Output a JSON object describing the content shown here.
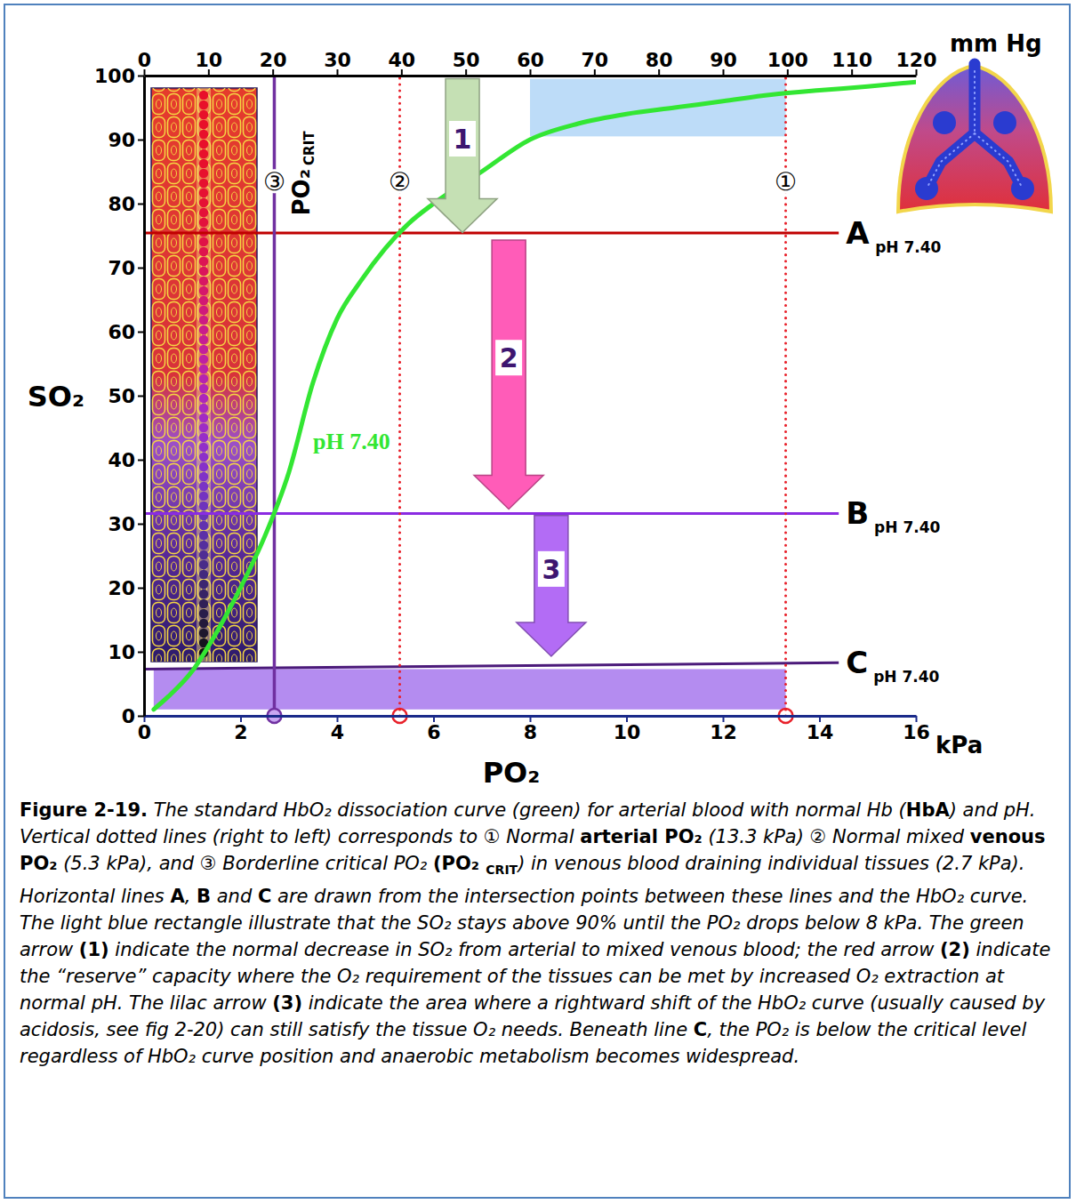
{
  "chart_data": {
    "type": "line",
    "xlabel": "PO₂",
    "xunit": "kPa",
    "x2unit": "mm Hg",
    "ylabel": "SO₂",
    "x": [
      0.2,
      0.5,
      1,
      1.5,
      2,
      2.5,
      3,
      3.5,
      4,
      4.5,
      5,
      5.5,
      6,
      7,
      8,
      9,
      10,
      11,
      12,
      13,
      14,
      15,
      16
    ],
    "series": [
      {
        "name": "pH 7.40",
        "color": "#33e633",
        "values": [
          1,
          3,
          7,
          13,
          20,
          28,
          38,
          52,
          62,
          68,
          73,
          77,
          80,
          85,
          90,
          92.5,
          94,
          95,
          96,
          97,
          97.7,
          98.3,
          99
        ]
      }
    ],
    "xlim": [
      0,
      16
    ],
    "xticks": [
      0,
      2,
      4,
      6,
      8,
      10,
      12,
      14,
      16
    ],
    "x2lim": [
      0,
      120
    ],
    "x2ticks": [
      0,
      10,
      20,
      30,
      40,
      50,
      60,
      70,
      80,
      90,
      100,
      110,
      120
    ],
    "ylim": [
      0,
      100
    ],
    "yticks": [
      0,
      10,
      20,
      30,
      40,
      50,
      60,
      70,
      80,
      90,
      100
    ],
    "grid": false,
    "regions": [
      {
        "x": [
          8,
          13.3
        ],
        "y": [
          90.5,
          99.5
        ],
        "color": "#bddcf8"
      },
      {
        "x": [
          0.2,
          13.3
        ],
        "y": [
          1,
          7.3
        ],
        "color": "#b48cf0"
      }
    ],
    "vlines": [
      {
        "label": "①",
        "x": 13.3,
        "color": "#e8202a",
        "line_style": "dotted"
      },
      {
        "label": "②",
        "x": 5.3,
        "color": "#e8202a",
        "line_style": "dotted"
      },
      {
        "label": "③",
        "x": 2.7,
        "color": "#7030a0",
        "line_style": "solid",
        "title": "PO₂",
        "title_sub": "CRIT"
      }
    ],
    "hlines": [
      {
        "label": "A",
        "sub": "pH 7.40",
        "x": [
          0,
          14.4
        ],
        "y": [
          75.4,
          75.4
        ],
        "color": "#c00000"
      },
      {
        "label": "B",
        "sub": "pH 7.40",
        "x": [
          0,
          14.4
        ],
        "y": [
          31.6,
          31.6
        ],
        "color": "#8a2be2"
      },
      {
        "label": "C",
        "sub": "pH 7.40",
        "x": [
          0,
          14.4
        ],
        "y": [
          7.3,
          8.3
        ],
        "color": "#4b1a7a"
      }
    ],
    "arrows": [
      {
        "label": "1",
        "x": 6.6,
        "from": 99.5,
        "to": 75.5,
        "color": "#c5e0b4"
      },
      {
        "label": "2",
        "x": 7.56,
        "from": 74.3,
        "to": 32.3,
        "color": "#ff5cb8"
      },
      {
        "label": "3",
        "x": 8.44,
        "from": 31.3,
        "to": 9.3,
        "color": "#b36cf5"
      }
    ]
  },
  "caption": {
    "runs": [
      {
        "text": "Figure 2-19.",
        "style": "bold"
      },
      {
        "text": " The standard HbO₂ dissociation curve (green) for arterial blood with normal Hb (",
        "style": "italic"
      },
      {
        "text": "HbA",
        "style": "bold"
      },
      {
        "text": ") and pH. Vertical dotted lines (right to left) corresponds to ① Normal ",
        "style": "italic"
      },
      {
        "text": "arterial PO₂",
        "style": "bold"
      },
      {
        "text": " (13.3 kPa) ② Normal mixed ",
        "style": "italic"
      },
      {
        "text": "venous PO₂",
        "style": "bold"
      },
      {
        "text": " (5.3 kPa), and ③ Borderline critical PO₂ ",
        "style": "italic"
      },
      {
        "text": "(PO₂ ",
        "style": "bold"
      },
      {
        "text": "CRIT",
        "style": "bold-sub"
      },
      {
        "text": ") in venous blood draining individual tissues (2.7 kPa). Horizontal lines ",
        "style": "italic"
      },
      {
        "text": "A",
        "style": "bold"
      },
      {
        "text": ", ",
        "style": "italic"
      },
      {
        "text": "B",
        "style": "bold"
      },
      {
        "text": " and ",
        "style": "italic"
      },
      {
        "text": "C",
        "style": "bold"
      },
      {
        "text": " are drawn from the intersection points between these lines and the HbO₂ curve. The light blue rectangle illustrate that the SO₂ stays above 90% until the PO₂ drops below 8 kPa. The green arrow ",
        "style": "italic"
      },
      {
        "text": "(1)",
        "style": "bold"
      },
      {
        "text": " indicate the normal decrease in SO₂ from arterial to mixed venous blood; the red arrow ",
        "style": "italic"
      },
      {
        "text": "(2)",
        "style": "bold"
      },
      {
        "text": " indicate the “reserve” capacity where the O₂ requirement of the tissues can be met by increased O₂ extraction at normal pH. The lilac arrow ",
        "style": "italic"
      },
      {
        "text": "(3)",
        "style": "bold"
      },
      {
        "text": " indicate the area where a rightward shift of the HbO₂ curve (usually caused by acidosis, see fig 2-20) can still satisfy the tissue O₂ needs. Beneath line ",
        "style": "italic"
      },
      {
        "text": "C",
        "style": "bold"
      },
      {
        "text": ", the PO₂ is below the critical level regardless of HbO₂ curve position and anaerobic metabolism becomes widespread.",
        "style": "italic"
      }
    ]
  }
}
